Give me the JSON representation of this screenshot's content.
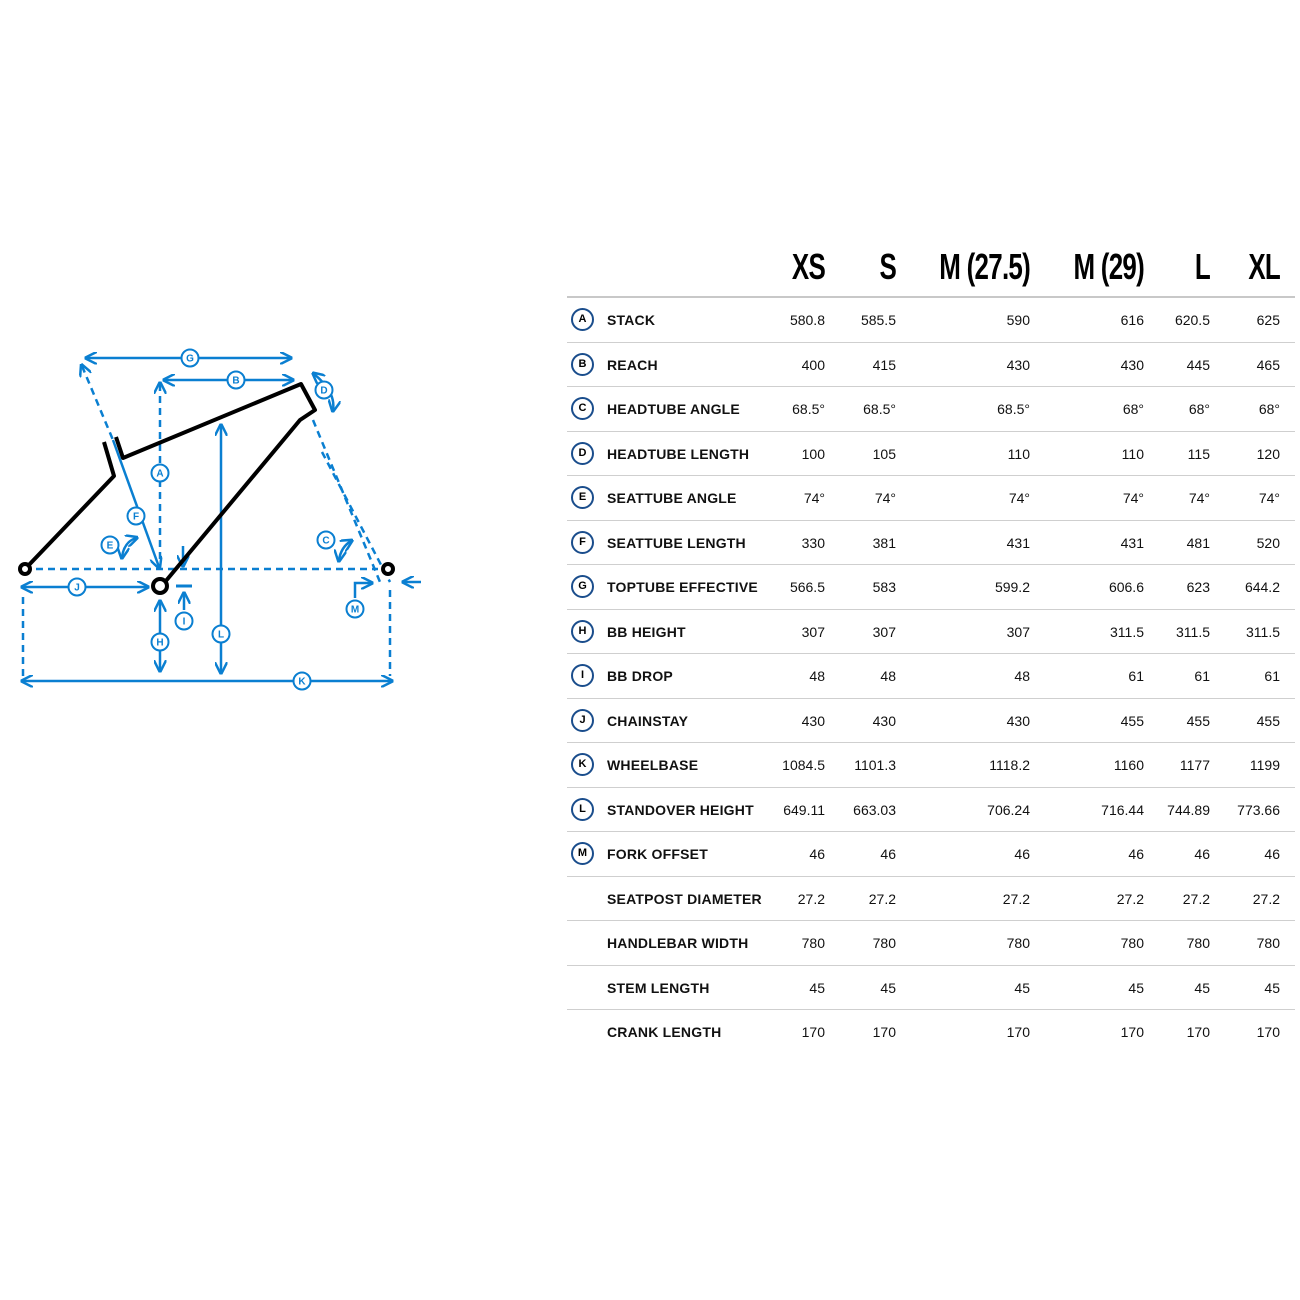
{
  "diagram": {
    "labels": [
      "A",
      "B",
      "C",
      "D",
      "E",
      "F",
      "G",
      "H",
      "I",
      "J",
      "K",
      "L",
      "M"
    ],
    "accent_color": "#0a7fd1",
    "frame_color": "#000000"
  },
  "table": {
    "sizes": [
      "XS",
      "S",
      "M (27.5)",
      "M (29)",
      "L",
      "XL"
    ],
    "rows": [
      {
        "letter": "A",
        "label": "STACK",
        "values": [
          "580.8",
          "585.5",
          "590",
          "616",
          "620.5",
          "625"
        ]
      },
      {
        "letter": "B",
        "label": "REACH",
        "values": [
          "400",
          "415",
          "430",
          "430",
          "445",
          "465"
        ]
      },
      {
        "letter": "C",
        "label": "HEADTUBE ANGLE",
        "values": [
          "68.5°",
          "68.5°",
          "68.5°",
          "68°",
          "68°",
          "68°"
        ]
      },
      {
        "letter": "D",
        "label": "HEADTUBE LENGTH",
        "values": [
          "100",
          "105",
          "110",
          "110",
          "115",
          "120"
        ]
      },
      {
        "letter": "E",
        "label": "SEATTUBE ANGLE",
        "values": [
          "74°",
          "74°",
          "74°",
          "74°",
          "74°",
          "74°"
        ]
      },
      {
        "letter": "F",
        "label": "SEATTUBE LENGTH",
        "values": [
          "330",
          "381",
          "431",
          "431",
          "481",
          "520"
        ]
      },
      {
        "letter": "G",
        "label": "TOPTUBE EFFECTIVE",
        "values": [
          "566.5",
          "583",
          "599.2",
          "606.6",
          "623",
          "644.2"
        ]
      },
      {
        "letter": "H",
        "label": "BB HEIGHT",
        "values": [
          "307",
          "307",
          "307",
          "311.5",
          "311.5",
          "311.5"
        ]
      },
      {
        "letter": "I",
        "label": "BB DROP",
        "values": [
          "48",
          "48",
          "48",
          "61",
          "61",
          "61"
        ]
      },
      {
        "letter": "J",
        "label": "CHAINSTAY",
        "values": [
          "430",
          "430",
          "430",
          "455",
          "455",
          "455"
        ]
      },
      {
        "letter": "K",
        "label": "WHEELBASE",
        "values": [
          "1084.5",
          "1101.3",
          "1118.2",
          "1160",
          "1177",
          "1199"
        ]
      },
      {
        "letter": "L",
        "label": "STANDOVER HEIGHT",
        "values": [
          "649.11",
          "663.03",
          "706.24",
          "716.44",
          "744.89",
          "773.66"
        ]
      },
      {
        "letter": "M",
        "label": "FORK OFFSET",
        "values": [
          "46",
          "46",
          "46",
          "46",
          "46",
          "46"
        ]
      },
      {
        "letter": "",
        "label": "SEATPOST DIAMETER",
        "values": [
          "27.2",
          "27.2",
          "27.2",
          "27.2",
          "27.2",
          "27.2"
        ]
      },
      {
        "letter": "",
        "label": "HANDLEBAR WIDTH",
        "values": [
          "780",
          "780",
          "780",
          "780",
          "780",
          "780"
        ]
      },
      {
        "letter": "",
        "label": "STEM LENGTH",
        "values": [
          "45",
          "45",
          "45",
          "45",
          "45",
          "45"
        ]
      },
      {
        "letter": "",
        "label": "CRANK LENGTH",
        "values": [
          "170",
          "170",
          "170",
          "170",
          "170",
          "170"
        ]
      }
    ]
  }
}
